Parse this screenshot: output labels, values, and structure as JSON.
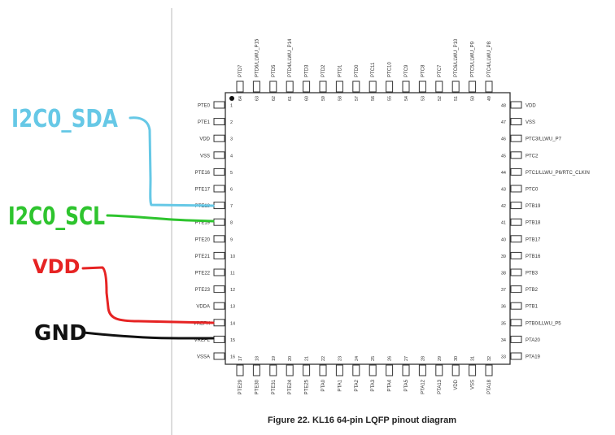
{
  "figure": {
    "caption": "Figure 22. KL16 64-pin LQFP pinout diagram"
  },
  "chip": {
    "left_pins": [
      {
        "num": "1",
        "label": "PTE0"
      },
      {
        "num": "2",
        "label": "PTE1"
      },
      {
        "num": "3",
        "label": "VDD"
      },
      {
        "num": "4",
        "label": "VSS"
      },
      {
        "num": "5",
        "label": "PTE16"
      },
      {
        "num": "6",
        "label": "PTE17"
      },
      {
        "num": "7",
        "label": "PTE18"
      },
      {
        "num": "8",
        "label": "PTE19"
      },
      {
        "num": "9",
        "label": "PTE20"
      },
      {
        "num": "10",
        "label": "PTE21"
      },
      {
        "num": "11",
        "label": "PTE22"
      },
      {
        "num": "12",
        "label": "PTE23"
      },
      {
        "num": "13",
        "label": "VDDA"
      },
      {
        "num": "14",
        "label": "VREFH"
      },
      {
        "num": "15",
        "label": "VREFL"
      },
      {
        "num": "16",
        "label": "VSSA"
      }
    ],
    "right_pins": [
      {
        "num": "48",
        "label": "VDD"
      },
      {
        "num": "47",
        "label": "VSS"
      },
      {
        "num": "46",
        "label": "PTC3/LLWU_P7"
      },
      {
        "num": "45",
        "label": "PTC2"
      },
      {
        "num": "44",
        "label": "PTC1/LLWU_P6/RTC_CLKIN"
      },
      {
        "num": "43",
        "label": "PTC0"
      },
      {
        "num": "42",
        "label": "PTB19"
      },
      {
        "num": "41",
        "label": "PTB18"
      },
      {
        "num": "40",
        "label": "PTB17"
      },
      {
        "num": "39",
        "label": "PTB16"
      },
      {
        "num": "38",
        "label": "PTB3"
      },
      {
        "num": "37",
        "label": "PTB2"
      },
      {
        "num": "36",
        "label": "PTB1"
      },
      {
        "num": "35",
        "label": "PTB0/LLWU_P5"
      },
      {
        "num": "34",
        "label": "PTA20"
      },
      {
        "num": "33",
        "label": "PTA19"
      }
    ],
    "top_pins": [
      {
        "num": "64",
        "label": "PTD7"
      },
      {
        "num": "63",
        "label": "PTD6/LLWU_P15"
      },
      {
        "num": "62",
        "label": "PTD5"
      },
      {
        "num": "61",
        "label": "PTD4/LLWU_P14"
      },
      {
        "num": "60",
        "label": "PTD3"
      },
      {
        "num": "59",
        "label": "PTD2"
      },
      {
        "num": "58",
        "label": "PTD1"
      },
      {
        "num": "57",
        "label": "PTD0"
      },
      {
        "num": "56",
        "label": "PTC11"
      },
      {
        "num": "55",
        "label": "PTC10"
      },
      {
        "num": "54",
        "label": "PTC9"
      },
      {
        "num": "53",
        "label": "PTC8"
      },
      {
        "num": "52",
        "label": "PTC7"
      },
      {
        "num": "51",
        "label": "PTC6/LLWU_P10"
      },
      {
        "num": "50",
        "label": "PTC5/LLWU_P9"
      },
      {
        "num": "49",
        "label": "PTC4/LLWU_P8"
      }
    ],
    "bottom_pins": [
      {
        "num": "17",
        "label": "PTE29"
      },
      {
        "num": "18",
        "label": "PTE30"
      },
      {
        "num": "19",
        "label": "PTE31"
      },
      {
        "num": "20",
        "label": "PTE24"
      },
      {
        "num": "21",
        "label": "PTE25"
      },
      {
        "num": "22",
        "label": "PTA0"
      },
      {
        "num": "23",
        "label": "PTA1"
      },
      {
        "num": "24",
        "label": "PTA2"
      },
      {
        "num": "25",
        "label": "PTA3"
      },
      {
        "num": "26",
        "label": "PTA4"
      },
      {
        "num": "27",
        "label": "PTA5"
      },
      {
        "num": "28",
        "label": "PTA12"
      },
      {
        "num": "29",
        "label": "PTA13"
      },
      {
        "num": "30",
        "label": "VDD"
      },
      {
        "num": "31",
        "label": "VSS"
      },
      {
        "num": "32",
        "label": "PTA18"
      }
    ]
  },
  "annotations": [
    {
      "text": "I2C0_SDA",
      "color": "#66c8e6",
      "pin": 7
    },
    {
      "text": "I2C0_SCL",
      "color": "#2ec42e",
      "pin": 8
    },
    {
      "text": "VDD",
      "color": "#e62323",
      "pin": 14
    },
    {
      "text": "GND",
      "color": "#111111",
      "pin": 15
    }
  ]
}
